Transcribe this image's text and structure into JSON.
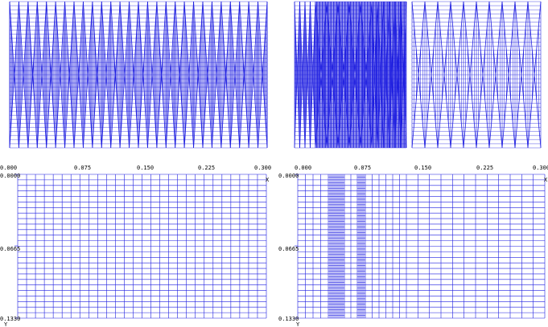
{
  "colors": {
    "mesh": "#1f1fe0",
    "mesh_light": "#3a3af5",
    "text": "#000000",
    "background": "#ffffff"
  },
  "top_left_panel": {
    "description": "dense uniform sliver-triangle mesh"
  },
  "top_right_panel": {
    "description": "locally refined triangle mesh"
  },
  "bottom_left_panel": {
    "x_axis_label": "X",
    "y_axis_label": "Y",
    "x_ticks": [
      "0.000",
      "0.075",
      "0.150",
      "0.225",
      "0.300"
    ],
    "y_ticks": [
      "0.0000",
      "0.0665",
      "0.1330"
    ]
  },
  "bottom_right_panel": {
    "x_axis_label": "X",
    "y_axis_label": "Y",
    "x_ticks": [
      "0.000",
      "0.075",
      "0.150",
      "0.225",
      "0.300"
    ],
    "y_ticks": [
      "0.0000",
      "0.0665",
      "0.1330"
    ]
  }
}
